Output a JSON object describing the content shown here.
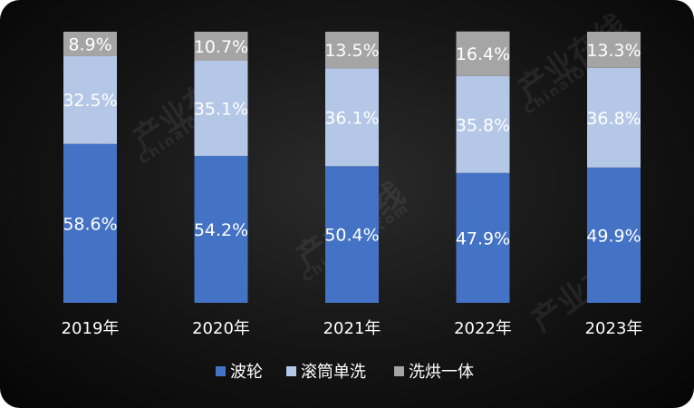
{
  "chart_data": {
    "type": "bar",
    "stacked": true,
    "percent": true,
    "categories": [
      "2019年",
      "2020年",
      "2021年",
      "2022年",
      "2023年"
    ],
    "series": [
      {
        "name": "波轮",
        "values": [
          58.6,
          54.2,
          50.4,
          47.9,
          49.9
        ],
        "labels": [
          "58.6%",
          "54.2%",
          "50.4%",
          "47.9%",
          "49.9%"
        ],
        "color": "#4472c4"
      },
      {
        "name": "滚筒单洗",
        "values": [
          32.5,
          35.1,
          36.1,
          35.8,
          36.8
        ],
        "labels": [
          "32.5%",
          "35.1%",
          "36.1%",
          "35.8%",
          "36.8%"
        ],
        "color": "#b4c7e7"
      },
      {
        "name": "洗烘一体",
        "values": [
          8.9,
          10.7,
          13.5,
          16.4,
          13.3
        ],
        "labels": [
          "8.9%",
          "10.7%",
          "13.5%",
          "16.4%",
          "13.3%"
        ],
        "color": "#a5a5a5"
      }
    ],
    "ylim": [
      0,
      100
    ],
    "grid": false,
    "legend_position": "bottom-center",
    "title": "",
    "xlabel": "",
    "ylabel": ""
  },
  "watermark": {
    "text": "产业在线",
    "subtext": "ChinaIOL.com"
  }
}
